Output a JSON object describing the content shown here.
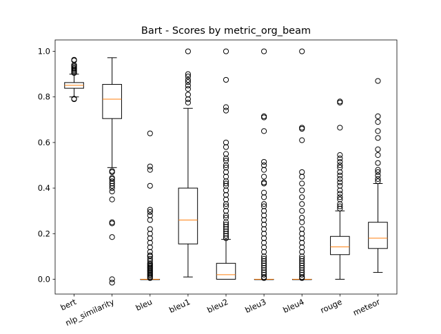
{
  "chart_data": {
    "type": "box",
    "title": "Bart - Scores by metric_org_beam",
    "xlabel": "",
    "ylabel": "",
    "ylim": [
      -0.065,
      1.05
    ],
    "yticks": [
      "0.0",
      "0.2",
      "0.4",
      "0.6",
      "0.8",
      "1.0"
    ],
    "x_tick_rotation_deg": 25,
    "grid": false,
    "colors": {
      "box": "#000000",
      "median": "#ff7f0e",
      "background": "#ffffff"
    },
    "series": [
      {
        "name": "bert",
        "whislo": 0.8,
        "q1": 0.838,
        "median": 0.851,
        "q3": 0.863,
        "whishi": 0.9,
        "fliers": [
          0.79,
          0.792,
          0.905,
          0.91,
          0.915,
          0.92,
          0.925,
          0.93,
          0.935,
          0.94,
          0.96,
          0.963
        ]
      },
      {
        "name": "nlp_similarity",
        "whislo": 0.49,
        "q1": 0.705,
        "median": 0.79,
        "q3": 0.855,
        "whishi": 0.972,
        "fliers": [
          0.475,
          0.47,
          0.445,
          0.44,
          0.43,
          0.42,
          0.41,
          0.4,
          0.385,
          0.35,
          0.25,
          0.245,
          0.185,
          0.0,
          -0.015
        ]
      },
      {
        "name": "bleu",
        "whislo": 0.0,
        "q1": 0.0,
        "median": 0.0,
        "q3": 0.0,
        "whishi": 0.0,
        "fliers": [
          0.005,
          0.01,
          0.015,
          0.02,
          0.025,
          0.03,
          0.035,
          0.04,
          0.045,
          0.05,
          0.055,
          0.06,
          0.065,
          0.07,
          0.08,
          0.09,
          0.1,
          0.105,
          0.12,
          0.14,
          0.16,
          0.18,
          0.2,
          0.22,
          0.26,
          0.28,
          0.295,
          0.305,
          0.41,
          0.48,
          0.495,
          0.64
        ]
      },
      {
        "name": "bleu1",
        "whislo": 0.01,
        "q1": 0.155,
        "median": 0.26,
        "q3": 0.4,
        "whishi": 0.75,
        "fliers": [
          0.775,
          0.79,
          0.81,
          0.835,
          0.85,
          0.865,
          0.875,
          0.89,
          0.9,
          1.0
        ]
      },
      {
        "name": "bleu2",
        "whislo": 0.0,
        "q1": 0.0,
        "median": 0.02,
        "q3": 0.07,
        "whishi": 0.175,
        "fliers": [
          0.18,
          0.19,
          0.2,
          0.21,
          0.22,
          0.23,
          0.24,
          0.25,
          0.27,
          0.28,
          0.3,
          0.32,
          0.33,
          0.35,
          0.37,
          0.39,
          0.41,
          0.42,
          0.43,
          0.45,
          0.47,
          0.49,
          0.5,
          0.52,
          0.53,
          0.55,
          0.58,
          0.6,
          0.74,
          0.755,
          0.875,
          1.0
        ]
      },
      {
        "name": "bleu3",
        "whislo": 0.0,
        "q1": 0.0,
        "median": 0.0,
        "q3": 0.0,
        "whishi": 0.0,
        "fliers": [
          0.005,
          0.01,
          0.02,
          0.03,
          0.04,
          0.05,
          0.06,
          0.07,
          0.08,
          0.09,
          0.1,
          0.12,
          0.14,
          0.16,
          0.18,
          0.2,
          0.22,
          0.24,
          0.26,
          0.28,
          0.3,
          0.32,
          0.33,
          0.36,
          0.38,
          0.42,
          0.425,
          0.45,
          0.48,
          0.5,
          0.515,
          0.65,
          0.71,
          0.715,
          1.0
        ]
      },
      {
        "name": "bleu4",
        "whislo": 0.0,
        "q1": 0.0,
        "median": 0.0,
        "q3": 0.0,
        "whishi": 0.0,
        "fliers": [
          0.005,
          0.01,
          0.02,
          0.03,
          0.04,
          0.05,
          0.06,
          0.07,
          0.08,
          0.09,
          0.1,
          0.12,
          0.14,
          0.16,
          0.18,
          0.2,
          0.22,
          0.25,
          0.27,
          0.3,
          0.33,
          0.36,
          0.39,
          0.42,
          0.45,
          0.47,
          0.61,
          0.66,
          0.665,
          1.0
        ]
      },
      {
        "name": "rouge",
        "whislo": 0.0,
        "q1": 0.108,
        "median": 0.142,
        "q3": 0.188,
        "whishi": 0.3,
        "fliers": [
          0.31,
          0.32,
          0.33,
          0.35,
          0.36,
          0.375,
          0.39,
          0.41,
          0.425,
          0.44,
          0.455,
          0.47,
          0.49,
          0.5,
          0.515,
          0.53,
          0.545,
          0.665,
          0.775,
          0.78
        ]
      },
      {
        "name": "meteor",
        "whislo": 0.03,
        "q1": 0.135,
        "median": 0.18,
        "q3": 0.25,
        "whishi": 0.42,
        "fliers": [
          0.43,
          0.44,
          0.455,
          0.47,
          0.48,
          0.51,
          0.545,
          0.57,
          0.62,
          0.65,
          0.69,
          0.715,
          0.87
        ]
      }
    ]
  }
}
